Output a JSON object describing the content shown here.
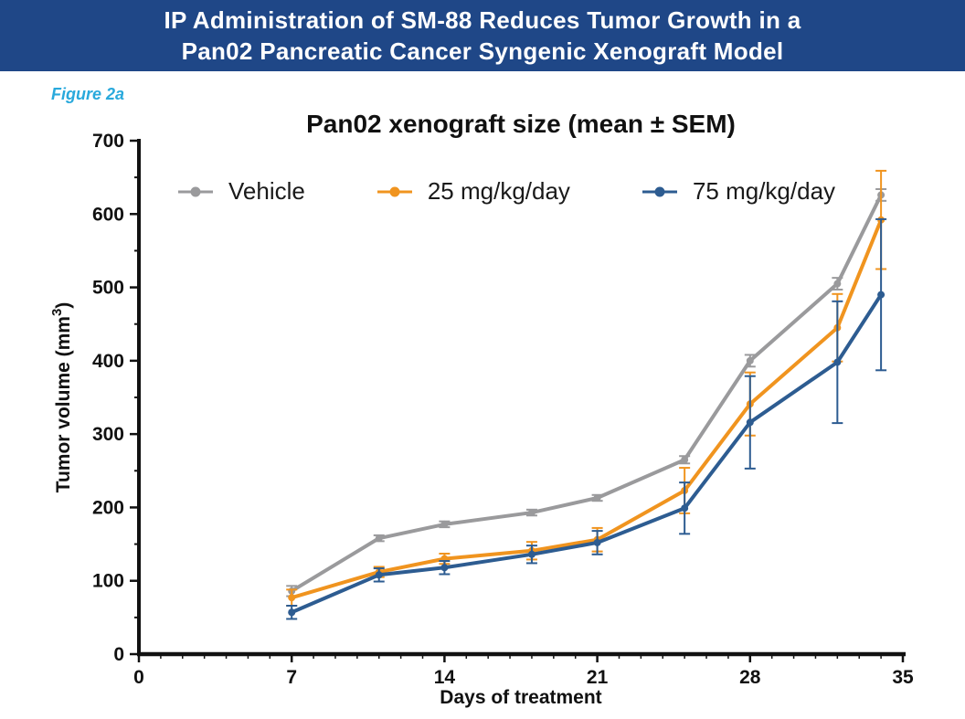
{
  "header": {
    "line1": "IP Administration of SM-88 Reduces Tumor Growth in a",
    "line2": "Pan02 Pancreatic Cancer Syngenic Xenograft Model",
    "bg_color": "#1f4787",
    "text_color": "#ffffff"
  },
  "figure_label": "Figure 2a",
  "figure_label_color": "#29a9dc",
  "chart_data": {
    "type": "line",
    "title": "Pan02 xenograft size (mean ± SEM)",
    "xlabel": "Days of treatment",
    "ylabel": "Tumor volume (mm³)",
    "xlim": [
      0,
      35
    ],
    "ylim": [
      0,
      700
    ],
    "x_major_ticks": [
      0,
      7,
      14,
      21,
      28,
      35
    ],
    "x_minor_step": 1,
    "y_major_ticks": [
      0,
      100,
      200,
      300,
      400,
      500,
      600,
      700
    ],
    "y_minor_step": 50,
    "grid": false,
    "legend_position": "top-inside",
    "axis_color": "#111111",
    "x": [
      7,
      11,
      14,
      18,
      21,
      25,
      28,
      32,
      34
    ],
    "series": [
      {
        "name": "Vehicle",
        "color": "#9a9a9c",
        "values": [
          86,
          158,
          177,
          193,
          213,
          265,
          400,
          505,
          626
        ],
        "sem": [
          7,
          4,
          4,
          4,
          4,
          5,
          8,
          8,
          8
        ]
      },
      {
        "name": "25 mg/kg/day",
        "color": "#f0941f",
        "values": [
          77,
          112,
          130,
          141,
          156,
          223,
          341,
          445,
          592
        ],
        "sem": [
          11,
          7,
          7,
          12,
          16,
          31,
          43,
          46,
          67
        ]
      },
      {
        "name": "75 mg/kg/day",
        "color": "#2d5c91",
        "values": [
          57,
          108,
          118,
          136,
          152,
          199,
          316,
          398,
          490
        ],
        "sem": [
          9,
          9,
          9,
          12,
          16,
          35,
          63,
          83,
          103
        ]
      }
    ]
  }
}
